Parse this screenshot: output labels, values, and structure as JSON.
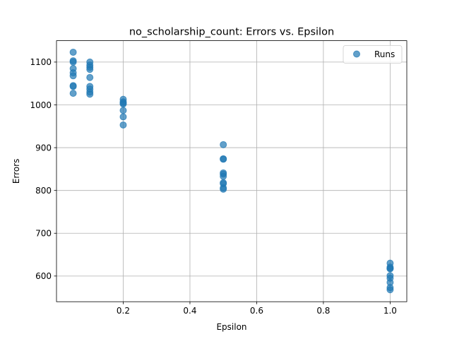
{
  "chart_data": {
    "type": "scatter",
    "title": "no_scholarship_count: Errors vs. Epsilon",
    "xlabel": "Epsilon",
    "ylabel": "Errors",
    "xlim": [
      0.0,
      1.05
    ],
    "ylim": [
      540,
      1150
    ],
    "xticks": [
      0.2,
      0.4,
      0.6,
      0.8,
      1.0
    ],
    "xtick_labels": [
      "0.2",
      "0.4",
      "0.6",
      "0.8",
      "1.0"
    ],
    "yticks": [
      600,
      700,
      800,
      900,
      1000,
      1100
    ],
    "ytick_labels": [
      "600",
      "700",
      "800",
      "900",
      "1000",
      "1100"
    ],
    "grid": true,
    "legend_position": "top-right",
    "series": [
      {
        "name": "Runs",
        "color": "#1f77b4",
        "points": [
          [
            0.05,
            1123
          ],
          [
            0.05,
            1103
          ],
          [
            0.05,
            1100
          ],
          [
            0.05,
            1085
          ],
          [
            0.05,
            1075
          ],
          [
            0.05,
            1068
          ],
          [
            0.05,
            1045
          ],
          [
            0.05,
            1043
          ],
          [
            0.05,
            1027
          ],
          [
            0.1,
            1100
          ],
          [
            0.1,
            1093
          ],
          [
            0.1,
            1088
          ],
          [
            0.1,
            1083
          ],
          [
            0.1,
            1064
          ],
          [
            0.1,
            1043
          ],
          [
            0.1,
            1037
          ],
          [
            0.1,
            1030
          ],
          [
            0.1,
            1025
          ],
          [
            0.2,
            1013
          ],
          [
            0.2,
            1007
          ],
          [
            0.2,
            1004
          ],
          [
            0.2,
            1002
          ],
          [
            0.2,
            987
          ],
          [
            0.2,
            972
          ],
          [
            0.2,
            953
          ],
          [
            0.5,
            907
          ],
          [
            0.5,
            874
          ],
          [
            0.5,
            873
          ],
          [
            0.5,
            841
          ],
          [
            0.5,
            838
          ],
          [
            0.5,
            833
          ],
          [
            0.5,
            818
          ],
          [
            0.5,
            816
          ],
          [
            0.5,
            806
          ],
          [
            0.5,
            803
          ],
          [
            1.0,
            630
          ],
          [
            1.0,
            621
          ],
          [
            1.0,
            618
          ],
          [
            1.0,
            617
          ],
          [
            1.0,
            601
          ],
          [
            1.0,
            595
          ],
          [
            1.0,
            585
          ],
          [
            1.0,
            573
          ],
          [
            1.0,
            568
          ]
        ]
      }
    ]
  }
}
